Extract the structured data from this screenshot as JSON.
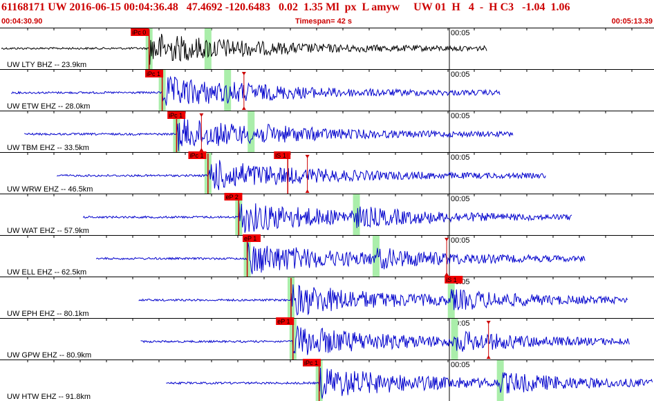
{
  "header": {
    "event_line": "61168171 UW 2016-06-15 00:04:36.48   47.4692 -120.6483   0.02  1.35 Ml  px  L amyw     UW 01  H   4  -  H C3   -1.04  1.06",
    "start_time": "00:04:30.90",
    "timespan": "Timespan=  42 s",
    "end_time": "00:05:13.39"
  },
  "colors": {
    "trace": "#0000cc",
    "first_trace": "#000000",
    "pick_label_bg": "#ee0000",
    "pick_line": "#cc0000",
    "pick_window": "#aaeeaa",
    "grid": "#000000",
    "text": "#cc0000"
  },
  "tick_label": "00:05",
  "traces": [
    {
      "label": "UW LTY BHZ -- 23.9km",
      "start": 0.0,
      "end": 0.745,
      "p": 0.228,
      "pick": "iPc 0",
      "pick_pos": 0.2,
      "pick_row": "top",
      "s": 0.318,
      "amp": "black"
    },
    {
      "label": "UW ETW EHZ -- 28.0km",
      "start": 0.015,
      "end": 0.765,
      "p": 0.248,
      "pick": "iPc 1",
      "pick_pos": 0.222,
      "pick_row": "top",
      "s": 0.348,
      "marker": 0.373
    },
    {
      "label": "UW TBM EHZ -- 33.5km",
      "start": 0.035,
      "end": 0.785,
      "p": 0.27,
      "pick": "iPc 1",
      "pick_pos": 0.256,
      "pick_row": "top",
      "s": 0.384,
      "marker": 0.308
    },
    {
      "label": "UW WRW EHZ -- 46.5km",
      "start": 0.085,
      "end": 0.835,
      "p": 0.318,
      "pick": "iPc 1",
      "pick_pos": 0.288,
      "pick_row": "bottom",
      "pick2": "iS 1",
      "pick2_pos": 0.44,
      "marker": 0.47
    },
    {
      "label": "UW WAT EHZ -- 57.9km",
      "start": 0.125,
      "end": 0.875,
      "p": 0.365,
      "pick": "eP 2",
      "pick_pos": 0.343,
      "pick_row": "bottom",
      "s": 0.545
    },
    {
      "label": "UW ELL EHZ -- 62.5km",
      "start": 0.145,
      "end": 0.895,
      "p": 0.378,
      "pick": "eP 1",
      "pick_pos": 0.371,
      "pick_row": "bottom",
      "s": 0.575,
      "marker": 0.683
    },
    {
      "label": "UW EPH EHZ -- 80.1km",
      "start": 0.21,
      "end": 0.96,
      "p": 0.445,
      "pick": "iS 1",
      "pick_pos": 0.68,
      "pick_row": "bottom",
      "s": 0.69
    },
    {
      "label": "UW GPW EHZ -- 80.9km",
      "start": 0.213,
      "end": 0.963,
      "p": 0.448,
      "pick": "eP 1",
      "pick_pos": 0.422,
      "pick_row": "bottom",
      "s": 0.695,
      "marker": 0.747
    },
    {
      "label": "UW HTW EHZ -- 91.8km",
      "start": 0.252,
      "end": 1.0,
      "p": 0.488,
      "pick": "iPc 1",
      "pick_pos": 0.463,
      "pick_row": "bottom",
      "s": 0.765
    }
  ]
}
